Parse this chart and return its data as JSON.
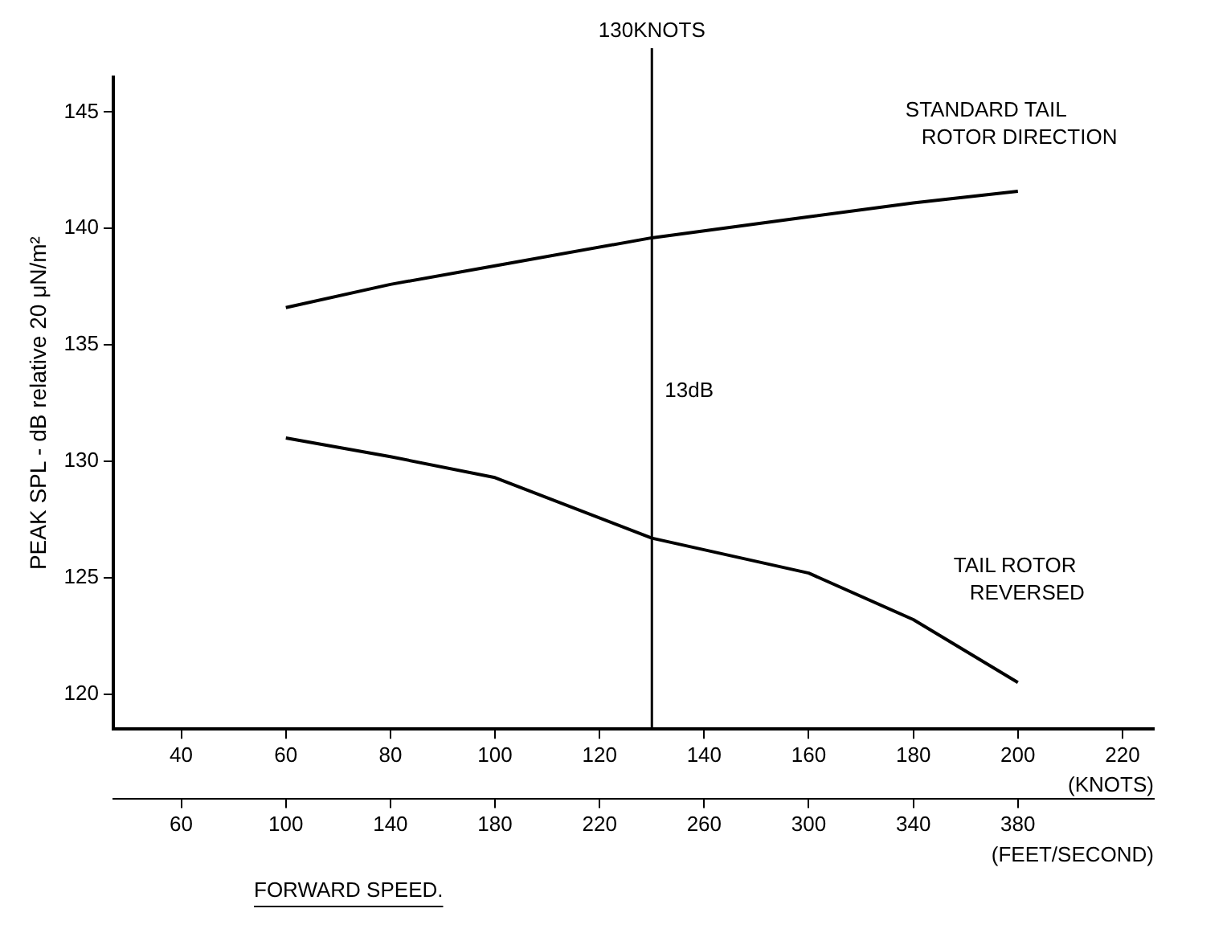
{
  "chart_data": {
    "type": "line",
    "ylabel": "PEAK SPL - dB relative 20 μN/m²",
    "xlabel": "(KNOTS)",
    "x2label": "(FEET/SECOND)",
    "x": [
      60,
      80,
      100,
      130,
      160,
      180,
      200
    ],
    "series": [
      {
        "name": "STANDARD TAIL ROTOR DIRECTION",
        "color": "#000000",
        "values": [
          136.6,
          137.6,
          138.4,
          139.6,
          140.5,
          141.1,
          141.6
        ]
      },
      {
        "name": "TAIL ROTOR REVERSED",
        "color": "#000000",
        "values": [
          131.0,
          130.2,
          129.3,
          126.7,
          125.2,
          123.2,
          120.5
        ]
      }
    ],
    "xlim": [
      27,
      226
    ],
    "xticks": [
      40,
      60,
      80,
      100,
      120,
      140,
      160,
      180,
      200,
      220
    ],
    "x2lim": [
      34,
      432
    ],
    "x2ticks": [
      60,
      100,
      140,
      180,
      220,
      260,
      300,
      340,
      380
    ],
    "ylim": [
      118.5,
      146.5
    ],
    "yticks": [
      120,
      125,
      130,
      135,
      140,
      145
    ],
    "ref_lines": [
      {
        "axis": "x",
        "value": 130,
        "label": "130KNOTS"
      }
    ],
    "annotations": [
      {
        "text": "13dB",
        "x": 130,
        "y": 133
      },
      "FORWARD SPEED."
    ],
    "grid": false,
    "legend": false,
    "marker": "none",
    "line_style": "solid"
  }
}
